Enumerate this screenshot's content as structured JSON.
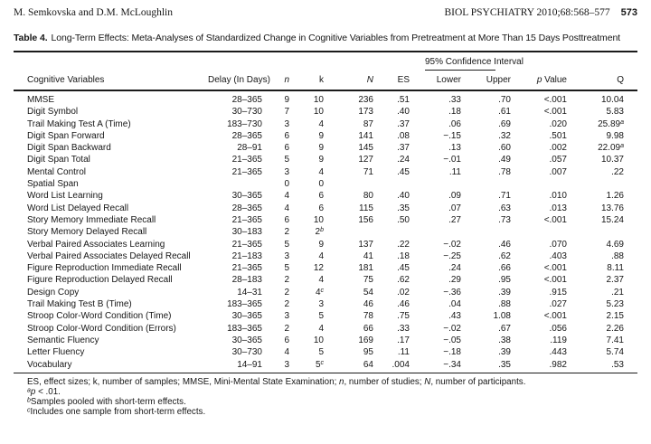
{
  "page_header": {
    "authors": "M. Semkovska and D.M. McLoughlin",
    "journal": "BIOL PSYCHIATRY 2010;68:568–577",
    "page_number": "573"
  },
  "table_title": {
    "label": "Table 4.",
    "text": "Long-Term Effects: Meta-Analyses of Standardized Change in Cognitive Variables from Pretreatment at More Than 15 Days Posttreatment"
  },
  "table": {
    "ci_group_label": "95% Confidence Interval",
    "columns": [
      {
        "label": "Cognitive Variables"
      },
      {
        "label": "Delay (In Days)"
      },
      {
        "label": "n",
        "italic": true
      },
      {
        "label": "k"
      },
      {
        "label": "N",
        "italic": true
      },
      {
        "label": "ES"
      },
      {
        "label": "Lower"
      },
      {
        "label": "Upper"
      },
      {
        "prefix": "p",
        "rest": " Value"
      },
      {
        "label": "Q"
      }
    ],
    "rows": [
      [
        "MMSE",
        "28–365",
        "9",
        "10",
        "236",
        ".51",
        ".33",
        ".70",
        "<.001",
        "10.04"
      ],
      [
        "Digit Symbol",
        "30–730",
        "7",
        "10",
        "173",
        ".40",
        ".18",
        ".61",
        "<.001",
        "5.83"
      ],
      [
        "Trail Making Test A (Time)",
        "183–730",
        "3",
        "4",
        "87",
        ".37",
        ".06",
        ".69",
        ".020",
        "25.89^a"
      ],
      [
        "Digit Span Forward",
        "28–365",
        "6",
        "9",
        "141",
        ".08",
        "−.15",
        ".32",
        ".501",
        "9.98"
      ],
      [
        "Digit Span Backward",
        "28–91",
        "6",
        "9",
        "145",
        ".37",
        ".13",
        ".60",
        ".002",
        "22.09^a"
      ],
      [
        "Digit Span Total",
        "21–365",
        "5",
        "9",
        "127",
        ".24",
        "−.01",
        ".49",
        ".057",
        "10.37"
      ],
      [
        "Mental Control",
        "21–365",
        "3",
        "4",
        "71",
        ".45",
        ".11",
        ".78",
        ".007",
        ".22"
      ],
      [
        "Spatial Span",
        "",
        "0",
        "0",
        "",
        "",
        "",
        "",
        "",
        ""
      ],
      [
        "Word List Learning",
        "30–365",
        "4",
        "6",
        "80",
        ".40",
        ".09",
        ".71",
        ".010",
        "1.26"
      ],
      [
        "Word List Delayed Recall",
        "28–365",
        "4",
        "6",
        "115",
        ".35",
        ".07",
        ".63",
        ".013",
        "13.76"
      ],
      [
        "Story Memory Immediate Recall",
        "21–365",
        "6",
        "10",
        "156",
        ".50",
        ".27",
        ".73",
        "<.001",
        "15.24"
      ],
      [
        "Story Memory Delayed Recall",
        "30–183",
        "2",
        "2^b",
        "",
        "",
        "",
        "",
        "",
        ""
      ],
      [
        "Verbal Paired Associates Learning",
        "21–365",
        "5",
        "9",
        "137",
        ".22",
        "−.02",
        ".46",
        ".070",
        "4.69"
      ],
      [
        "Verbal Paired Associates Delayed Recall",
        "21–183",
        "3",
        "4",
        "41",
        ".18",
        "−.25",
        ".62",
        ".403",
        ".88"
      ],
      [
        "Figure Reproduction Immediate Recall",
        "21–365",
        "5",
        "12",
        "181",
        ".45",
        ".24",
        ".66",
        "<.001",
        "8.11"
      ],
      [
        "Figure Reproduction Delayed Recall",
        "28–183",
        "2",
        "4",
        "75",
        ".62",
        ".29",
        ".95",
        "<.001",
        "2.37"
      ],
      [
        "Design Copy",
        "14–31",
        "2",
        "4^c",
        "54",
        ".02",
        "−.36",
        ".39",
        ".915",
        ".21"
      ],
      [
        "Trail Making Test B (Time)",
        "183–365",
        "2",
        "3",
        "46",
        ".46",
        ".04",
        ".88",
        ".027",
        "5.23"
      ],
      [
        "Stroop Color-Word Condition (Time)",
        "30–365",
        "3",
        "5",
        "78",
        ".75",
        ".43",
        "1.08",
        "<.001",
        "2.15"
      ],
      [
        "Stroop Color-Word Condition (Errors)",
        "183–365",
        "2",
        "4",
        "66",
        ".33",
        "−.02",
        ".67",
        ".056",
        "2.26"
      ],
      [
        "Semantic Fluency",
        "30–365",
        "6",
        "10",
        "169",
        ".17",
        "−.05",
        ".38",
        ".119",
        "7.41"
      ],
      [
        "Letter Fluency",
        "30–730",
        "4",
        "5",
        "95",
        ".11",
        "−.18",
        ".39",
        ".443",
        "5.74"
      ],
      [
        "Vocabulary",
        "14–91",
        "3",
        "5^c",
        "64",
        ".004",
        "−.34",
        ".35",
        ".982",
        ".53"
      ]
    ]
  },
  "footnotes": [
    [
      {
        "t": "ES, effect sizes; k, number of samples; MMSE, Mini-Mental State Examination; "
      },
      {
        "t": "n",
        "i": true
      },
      {
        "t": ", number of studies; "
      },
      {
        "t": "N",
        "i": true
      },
      {
        "t": ", number of participants."
      }
    ],
    [
      {
        "t": "a",
        "sup": true,
        "i": true
      },
      {
        "t": "p",
        "i": true
      },
      {
        "t": " < .01."
      }
    ],
    [
      {
        "t": "b",
        "sup": true,
        "i": true
      },
      {
        "t": "Samples pooled with short-term effects."
      }
    ],
    [
      {
        "t": "c",
        "sup": true,
        "i": true
      },
      {
        "t": "Includes one sample from short-term effects."
      }
    ]
  ]
}
